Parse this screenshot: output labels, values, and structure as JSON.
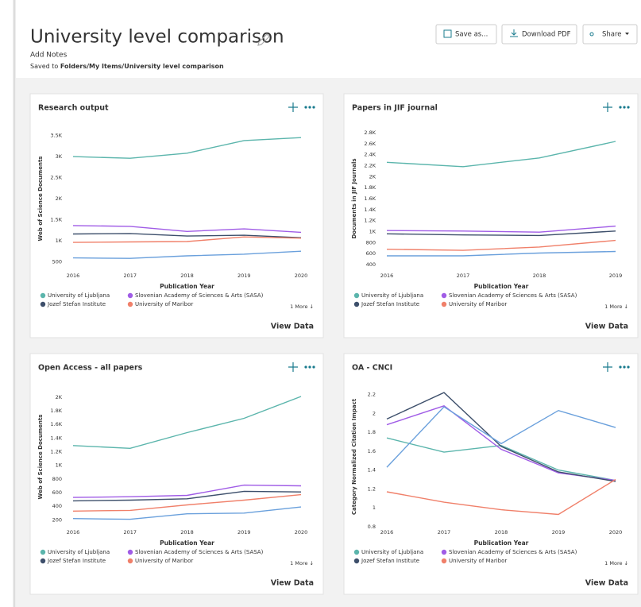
{
  "header": {
    "title": "University level comparison",
    "notes": "Add Notes",
    "saved_label": "Saved to",
    "saved_path": "Folders/My Items/University level comparison",
    "buttons": [
      "Save as...",
      "Download PDF",
      "Share"
    ]
  },
  "chart_data": [
    {
      "type": "line",
      "title": "Research output",
      "y_label": "Web of Science Documents",
      "x_label": "Publication Year",
      "x": [
        2016,
        2017,
        2018,
        2019,
        2020
      ],
      "xlim": [
        2016,
        2020
      ],
      "ylim": [
        300,
        3700
      ],
      "yticks": [
        500,
        {
          "value": 1000,
          "label": "1K"
        },
        {
          "value": 1500,
          "label": "1.5K"
        },
        {
          "value": 2000,
          "label": "2K"
        },
        {
          "value": 2500,
          "label": "2.5K"
        },
        {
          "value": 3000,
          "label": "3K"
        },
        {
          "value": 3500,
          "label": "3.5K"
        }
      ],
      "series": [
        {
          "name": "University of Ljubljana",
          "color": "#5bb5ac",
          "values": [
            3000,
            2960,
            3080,
            3380,
            3450
          ]
        },
        {
          "name": "Slovenian Academy of Sciences & Arts (SASA)",
          "color": "#a05ce6",
          "values": [
            1360,
            1340,
            1220,
            1280,
            1200
          ]
        },
        {
          "name": "Jozef Stefan Institute",
          "color": "#3d4f6b",
          "values": [
            1160,
            1170,
            1110,
            1130,
            1070
          ]
        },
        {
          "name": "University of Maribor",
          "color": "#f0806a",
          "values": [
            960,
            970,
            980,
            1090,
            1060
          ]
        },
        {
          "color": "#6aa0dc",
          "values": [
            590,
            580,
            640,
            680,
            750
          ]
        }
      ],
      "legend_more": "1 More ↓",
      "view_data": "View Data"
    },
    {
      "type": "line",
      "title": "Papers in JIF journal",
      "y_label": "Documents in JIF Journals",
      "x_label": "Publication Year",
      "x": [
        2016,
        2017,
        2018,
        2019
      ],
      "xlim": [
        2016,
        2019
      ],
      "ylim": [
        300,
        2900
      ],
      "yticks": [
        400,
        600,
        800,
        {
          "value": 1000,
          "label": "1K"
        },
        {
          "value": 1200,
          "label": "1.2K"
        },
        {
          "value": 1400,
          "label": "1.4K"
        },
        {
          "value": 1600,
          "label": "1.6K"
        },
        {
          "value": 1800,
          "label": "1.8K"
        },
        {
          "value": 2000,
          "label": "2K"
        },
        {
          "value": 2200,
          "label": "2.2K"
        },
        {
          "value": 2400,
          "label": "2.4K"
        },
        {
          "value": 2600,
          "label": "2.6K"
        },
        {
          "value": 2800,
          "label": "2.8K"
        }
      ],
      "series": [
        {
          "name": "University of Ljubljana",
          "color": "#5bb5ac",
          "values": [
            2260,
            2180,
            2340,
            2640
          ]
        },
        {
          "name": "Slovenian Academy of Sciences & Arts (SASA)",
          "color": "#a05ce6",
          "values": [
            1020,
            1010,
            990,
            1100
          ]
        },
        {
          "name": "Jozef Stefan Institute",
          "color": "#3d4f6b",
          "values": [
            960,
            940,
            930,
            1010
          ]
        },
        {
          "name": "University of Maribor",
          "color": "#f0806a",
          "values": [
            680,
            660,
            720,
            840
          ]
        },
        {
          "color": "#6aa0dc",
          "values": [
            560,
            560,
            610,
            640
          ]
        }
      ],
      "legend_more": "1 More ↓",
      "view_data": "View Data"
    },
    {
      "type": "line",
      "title": "Open Access - all papers",
      "y_label": "Web of Science Documents",
      "x_label": "Publication Year",
      "x": [
        2016,
        2017,
        2018,
        2019,
        2020
      ],
      "xlim": [
        2016,
        2020
      ],
      "ylim": [
        100,
        2150
      ],
      "yticks": [
        200,
        400,
        600,
        800,
        {
          "value": 1000,
          "label": "1K"
        },
        {
          "value": 1200,
          "label": "1.2K"
        },
        {
          "value": 1400,
          "label": "1.4K"
        },
        {
          "value": 1600,
          "label": "1.6K"
        },
        {
          "value": 1800,
          "label": "1.8K"
        },
        {
          "value": 2000,
          "label": "2K"
        }
      ],
      "series": [
        {
          "name": "University of Ljubljana",
          "color": "#5bb5ac",
          "values": [
            1290,
            1250,
            1480,
            1690,
            2010
          ]
        },
        {
          "name": "Slovenian Academy of Sciences & Arts (SASA)",
          "color": "#a05ce6",
          "values": [
            530,
            540,
            560,
            710,
            700
          ]
        },
        {
          "name": "Jozef Stefan Institute",
          "color": "#3d4f6b",
          "values": [
            480,
            490,
            510,
            620,
            610
          ]
        },
        {
          "name": "University of Maribor",
          "color": "#f0806a",
          "values": [
            330,
            340,
            420,
            490,
            570
          ]
        },
        {
          "color": "#6aa0dc",
          "values": [
            220,
            210,
            290,
            300,
            390
          ]
        }
      ],
      "legend_more": "1 More ↓",
      "view_data": "View Data"
    },
    {
      "type": "line",
      "title": "OA - CNCI",
      "y_label": "Category Normalized Citation Impact",
      "x_label": "Publication Year",
      "x": [
        2016,
        2017,
        2018,
        2019,
        2020
      ],
      "xlim": [
        2016,
        2020
      ],
      "ylim": [
        0.8,
        2.28
      ],
      "yticks": [
        0.8,
        1,
        1.2,
        1.4,
        1.6,
        1.8,
        2,
        2.2
      ],
      "series": [
        {
          "name": "University of Ljubljana",
          "color": "#5bb5ac",
          "values": [
            1.74,
            1.59,
            1.66,
            1.4,
            1.29
          ]
        },
        {
          "name": "Slovenian Academy of Sciences & Arts (SASA)",
          "color": "#a05ce6",
          "values": [
            1.88,
            2.08,
            1.62,
            1.37,
            1.29
          ]
        },
        {
          "name": "Jozef Stefan Institute",
          "color": "#3d4f6b",
          "values": [
            1.94,
            2.22,
            1.65,
            1.38,
            1.28
          ]
        },
        {
          "name": "University of Maribor",
          "color": "#f0806a",
          "values": [
            1.17,
            1.06,
            0.98,
            0.93,
            1.3
          ]
        },
        {
          "color": "#6aa0dc",
          "values": [
            1.43,
            2.07,
            1.68,
            2.03,
            1.85
          ]
        }
      ],
      "legend_more": "1 More ↓",
      "view_data": "View Data"
    }
  ]
}
